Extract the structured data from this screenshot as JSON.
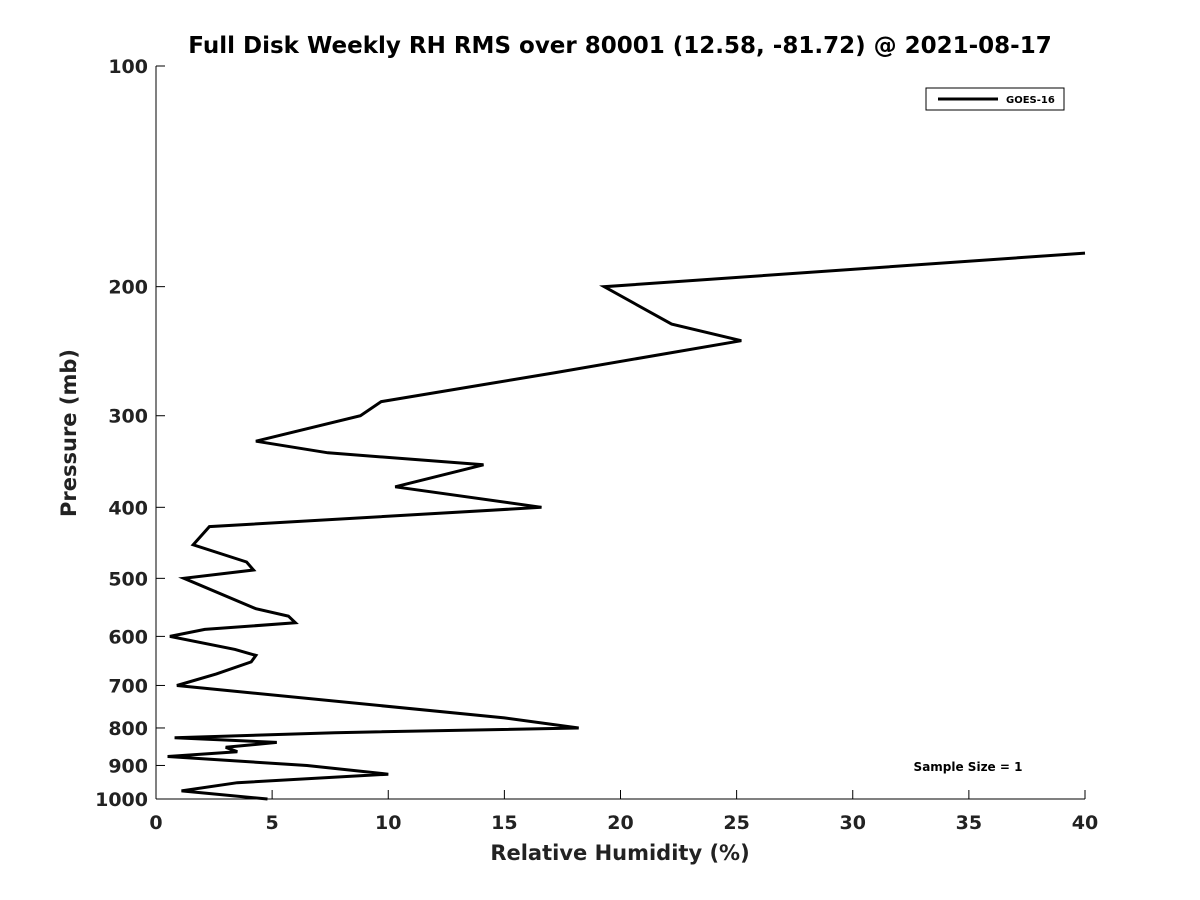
{
  "chart_data": {
    "type": "line",
    "title": "Full Disk Weekly RH RMS over 80001 (12.58, -81.72) @ 2021-08-17",
    "xlabel": "Relative Humidity (%)",
    "ylabel": "Pressure (mb)",
    "xlim": [
      0,
      40
    ],
    "ylim": [
      1000,
      100
    ],
    "yscale": "log",
    "x_ticks": [
      "0",
      "5",
      "10",
      "15",
      "20",
      "25",
      "30",
      "35",
      "40"
    ],
    "y_ticks": [
      "100",
      "200",
      "300",
      "400",
      "500",
      "600",
      "700",
      "800",
      "900",
      "1000"
    ],
    "grid": false,
    "legend": {
      "position": "top-right",
      "entries": [
        "GOES-16"
      ]
    },
    "annotation": "Sample Size = 1",
    "series": [
      {
        "name": "GOES-16",
        "color": "#000000",
        "x": [
          4.8,
          1.1,
          3.5,
          10.0,
          6.5,
          0.5,
          3.5,
          3.0,
          5.2,
          0.8,
          7.7,
          18.2,
          15.0,
          0.9,
          2.6,
          4.1,
          4.3,
          3.4,
          0.6,
          2.1,
          6.0,
          5.7,
          4.3,
          1.2,
          4.2,
          3.9,
          1.6,
          2.3,
          16.6,
          10.3,
          14.1,
          7.4,
          4.3,
          8.8,
          9.7,
          17.2,
          25.2,
          22.2,
          19.3,
          40.0
        ],
        "y": [
          1000,
          975,
          950,
          925,
          900,
          875,
          862,
          850,
          837,
          825,
          812,
          800,
          775,
          700,
          675,
          650,
          637,
          625,
          600,
          587,
          575,
          563,
          550,
          500,
          487,
          475,
          450,
          425,
          400,
          375,
          350,
          337,
          325,
          300,
          287,
          262,
          237,
          225,
          200,
          180
        ]
      }
    ]
  }
}
